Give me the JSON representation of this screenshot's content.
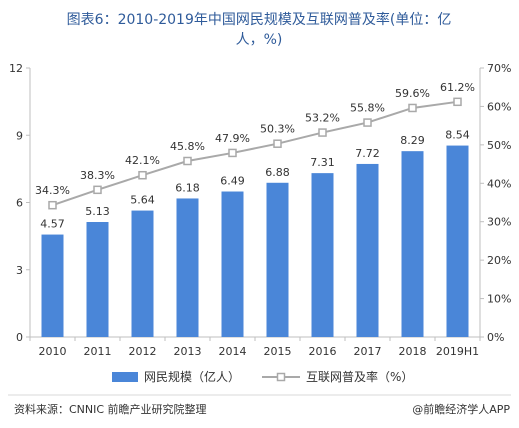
{
  "title_lines": [
    "图表6：2010-2019年中国网民规模及互联网普及率(单位：亿",
    "人，%)"
  ],
  "source": "资料来源：CNNIC 前瞻产业研究院整理",
  "brand": "@前瞻经济学人APP",
  "colors": {
    "bar": "#4a86d8",
    "line": "#a9a9a9",
    "marker_fill": "#ffffff",
    "title": "#2f5b9a",
    "text": "#333333",
    "axis": "#bfbfbf"
  },
  "chart_data": {
    "type": "bar",
    "categories": [
      "2010",
      "2011",
      "2012",
      "2013",
      "2014",
      "2015",
      "2016",
      "2017",
      "2018",
      "2019H1"
    ],
    "series": [
      {
        "name": "网民规模（亿人）",
        "type": "bar",
        "axis": "left",
        "values": [
          4.57,
          5.13,
          5.64,
          6.18,
          6.49,
          6.88,
          7.31,
          7.72,
          8.29,
          8.54
        ],
        "labels": [
          "4.57",
          "5.13",
          "5.64",
          "6.18",
          "6.49",
          "6.88",
          "7.31",
          "7.72",
          "8.29",
          "8.54"
        ]
      },
      {
        "name": "互联网普及率（%）",
        "type": "line",
        "axis": "right",
        "values": [
          34.3,
          38.3,
          42.1,
          45.8,
          47.9,
          50.3,
          53.2,
          55.8,
          59.6,
          61.2
        ],
        "labels": [
          "34.3%",
          "38.3%",
          "42.1%",
          "45.8%",
          "47.9%",
          "50.3%",
          "53.2%",
          "55.8%",
          "59.6%",
          "61.2%"
        ]
      }
    ],
    "y_left": {
      "ylim": [
        0,
        12
      ],
      "ticks": [
        "0",
        "3",
        "6",
        "9",
        "12"
      ]
    },
    "y_right": {
      "ylim": [
        0,
        70
      ],
      "ticks": [
        "0%",
        "10%",
        "20%",
        "30%",
        "40%",
        "50%",
        "60%",
        "70%"
      ]
    },
    "grid": false,
    "legend": "bottom"
  }
}
